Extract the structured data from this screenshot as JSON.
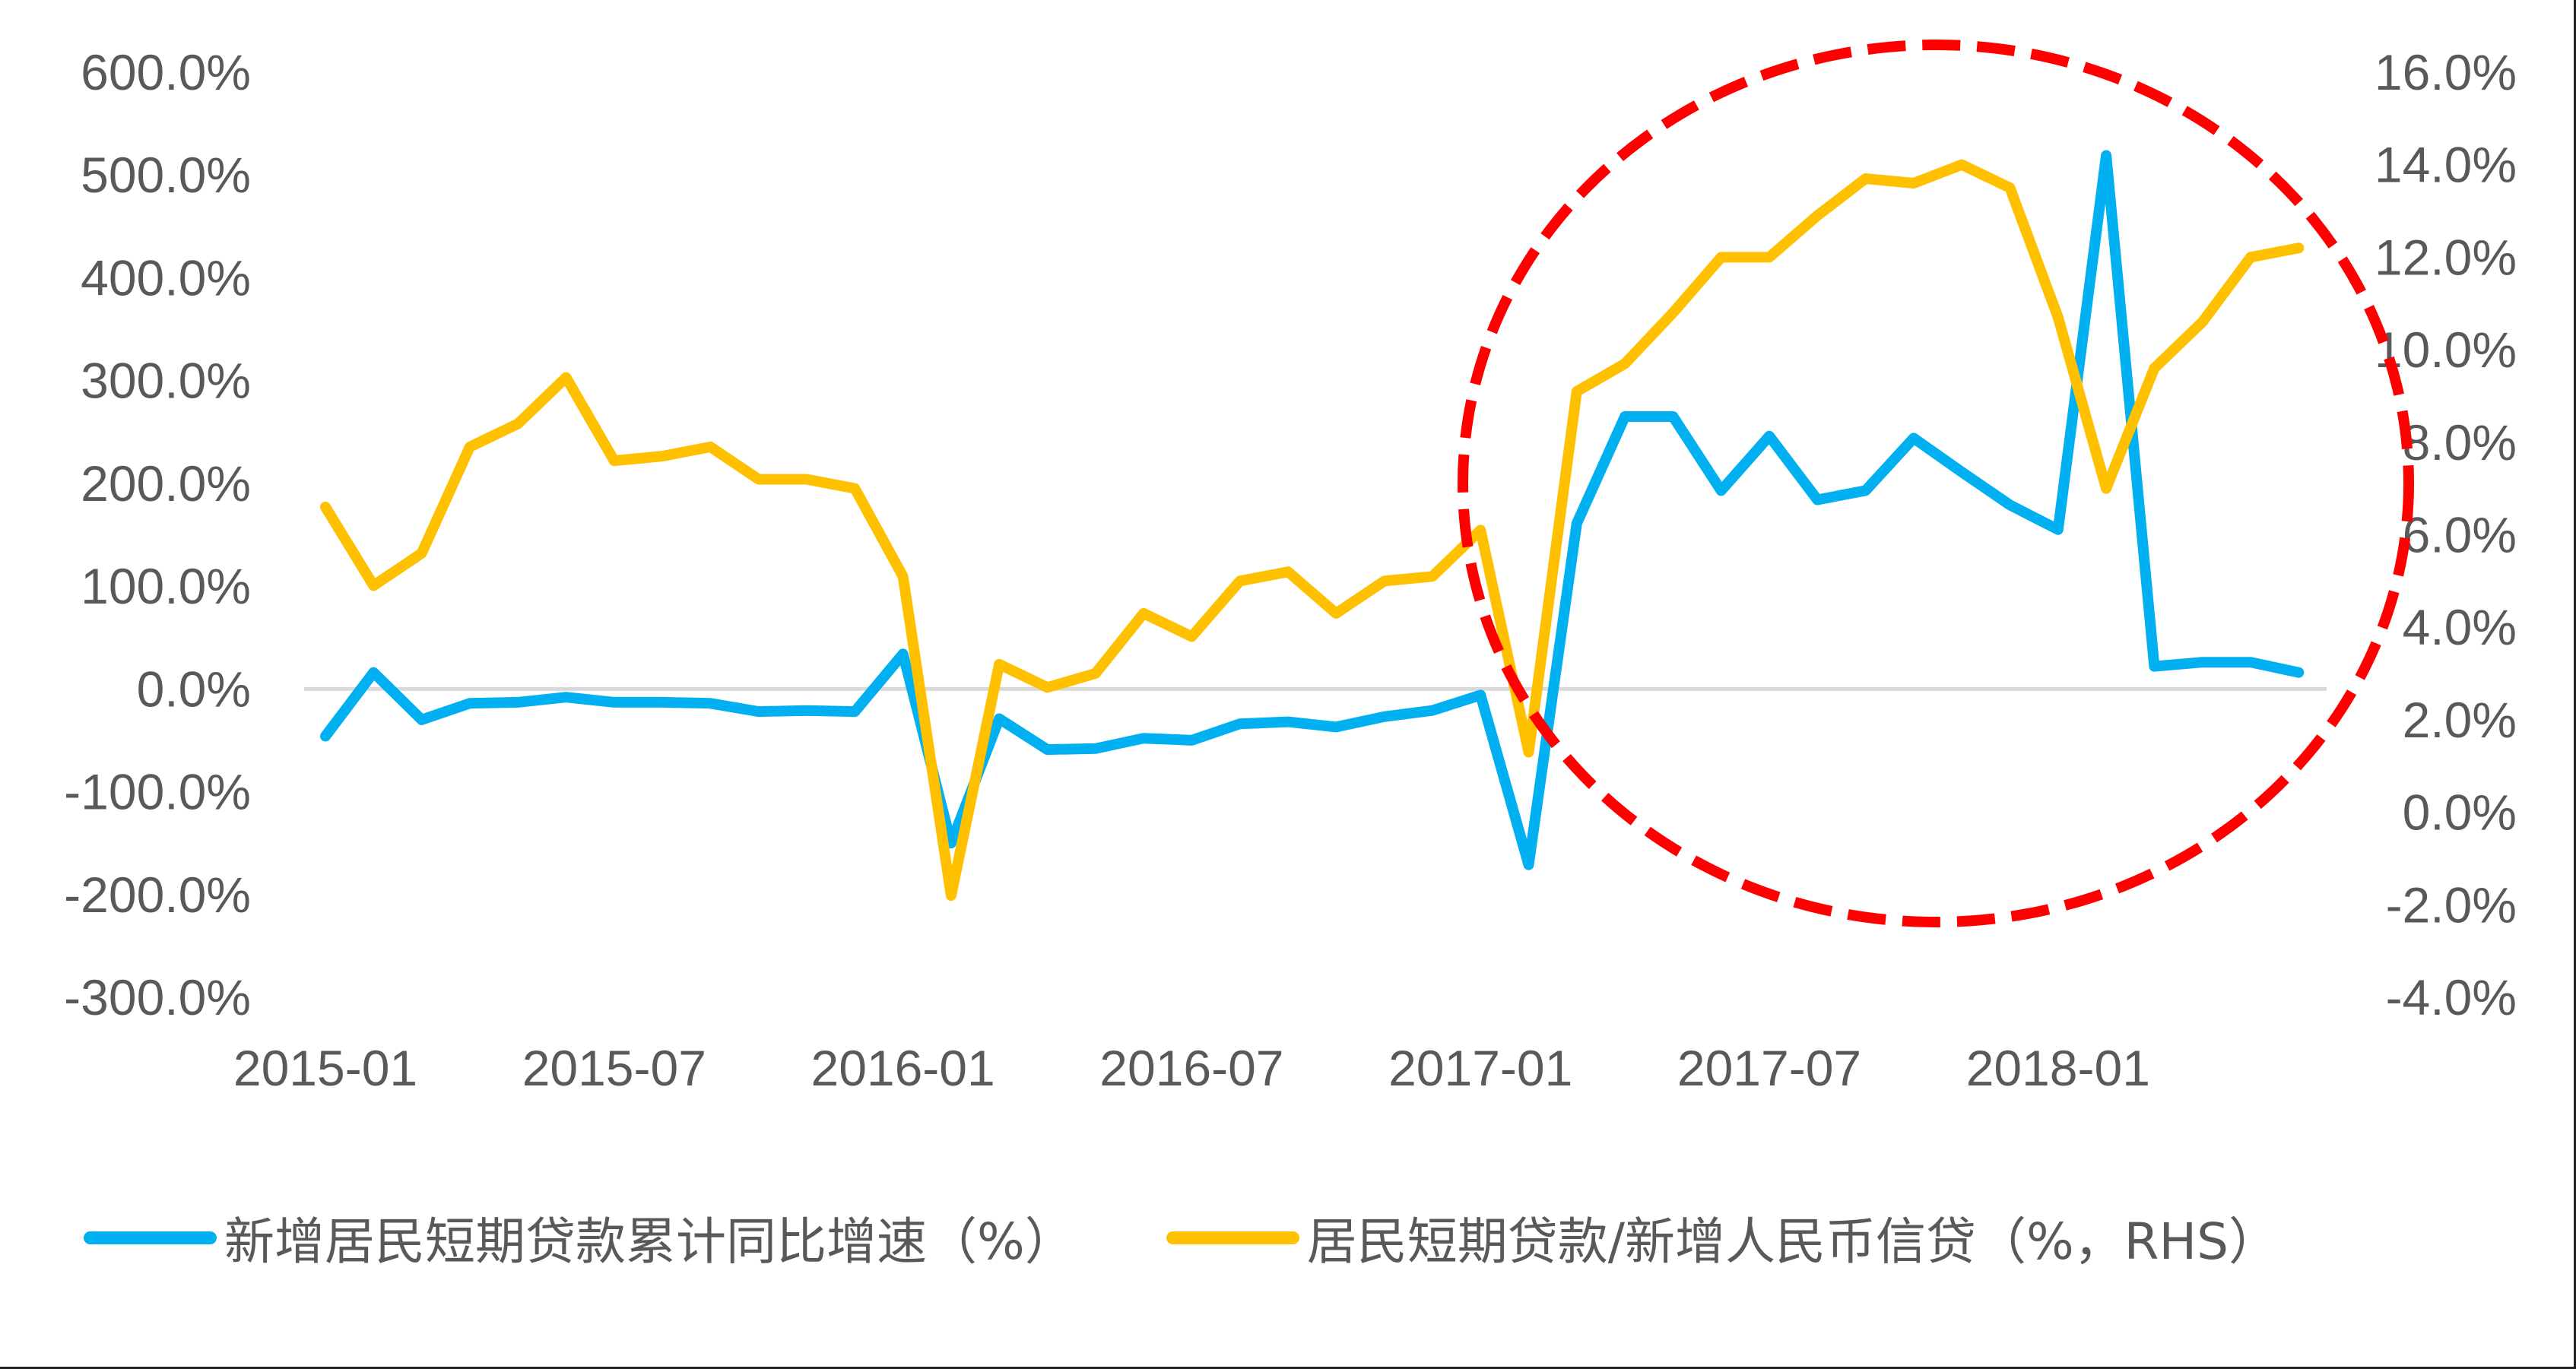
{
  "chart_data": {
    "type": "line",
    "title": "",
    "x": [
      "2015-01",
      "2015-02",
      "2015-03",
      "2015-04",
      "2015-05",
      "2015-06",
      "2015-07",
      "2015-08",
      "2015-09",
      "2015-10",
      "2015-11",
      "2015-12",
      "2016-01",
      "2016-02",
      "2016-03",
      "2016-04",
      "2016-05",
      "2016-06",
      "2016-07",
      "2016-08",
      "2016-09",
      "2016-10",
      "2016-11",
      "2016-12",
      "2017-01",
      "2017-02",
      "2017-03",
      "2017-04",
      "2017-05",
      "2017-06",
      "2017-07",
      "2017-08",
      "2017-09",
      "2017-10",
      "2017-11",
      "2017-12",
      "2018-01",
      "2018-02",
      "2018-03",
      "2018-04",
      "2018-05",
      "2018-06"
    ],
    "x_tick_labels": [
      "2015-01",
      "2015-07",
      "2016-01",
      "2016-07",
      "2017-01",
      "2017-07",
      "2018-01"
    ],
    "series": [
      {
        "name": "新增居民短期贷款累计同比增速（%）",
        "axis": "left",
        "color": "#00B0F0",
        "values": [
          -46,
          16,
          -30,
          -14,
          -13,
          -8,
          -13,
          -13,
          -14,
          -22,
          -21,
          -22,
          34,
          -150,
          -29,
          -59,
          -58,
          -48,
          -50,
          -34,
          -32,
          -37,
          -27,
          -21,
          -6,
          -171,
          161,
          265,
          265,
          193,
          246,
          184,
          193,
          244,
          211,
          179,
          155,
          519,
          22,
          26,
          26,
          16
        ]
      },
      {
        "name": "居民短期贷款/新增人民币信贷（%，RHS）",
        "axis": "right",
        "color": "#FFC000",
        "values": [
          6.6,
          4.9,
          5.6,
          7.9,
          8.4,
          9.4,
          7.6,
          7.7,
          7.9,
          7.2,
          7.2,
          7.0,
          5.1,
          -1.8,
          3.2,
          2.7,
          3.0,
          4.3,
          3.8,
          5.0,
          5.2,
          4.3,
          5.0,
          5.1,
          6.1,
          1.3,
          9.1,
          9.7,
          10.8,
          12.0,
          12.0,
          12.9,
          13.7,
          13.6,
          14.0,
          13.5,
          10.7,
          7.0,
          9.6,
          10.6,
          12.0,
          12.2
        ]
      }
    ],
    "ylabel_left": "",
    "ylabel_right": "",
    "ylim_left": [
      -300,
      600
    ],
    "ylim_right": [
      -4,
      16
    ],
    "y_ticks_left": [
      "600.0%",
      "500.0%",
      "400.0%",
      "300.0%",
      "200.0%",
      "100.0%",
      "0.0%",
      "-100.0%",
      "-200.0%",
      "-300.0%"
    ],
    "y_ticks_right": [
      "16.0%",
      "14.0%",
      "12.0%",
      "10.0%",
      "8.0%",
      "6.0%",
      "4.0%",
      "2.0%",
      "0.0%",
      "-2.0%",
      "-4.0%"
    ],
    "grid": false,
    "zero_line": true,
    "legend_position": "bottom",
    "annotation": {
      "type": "dashed-ellipse",
      "color": "#FF0000",
      "target": "2017-02 to 2018-06"
    }
  },
  "legend": {
    "items": [
      {
        "label": "新增居民短期贷款累计同比增速（%）",
        "color": "#00B0F0"
      },
      {
        "label": "居民短期贷款/新增人民币信贷（%，RHS）",
        "color": "#FFC000"
      }
    ]
  }
}
